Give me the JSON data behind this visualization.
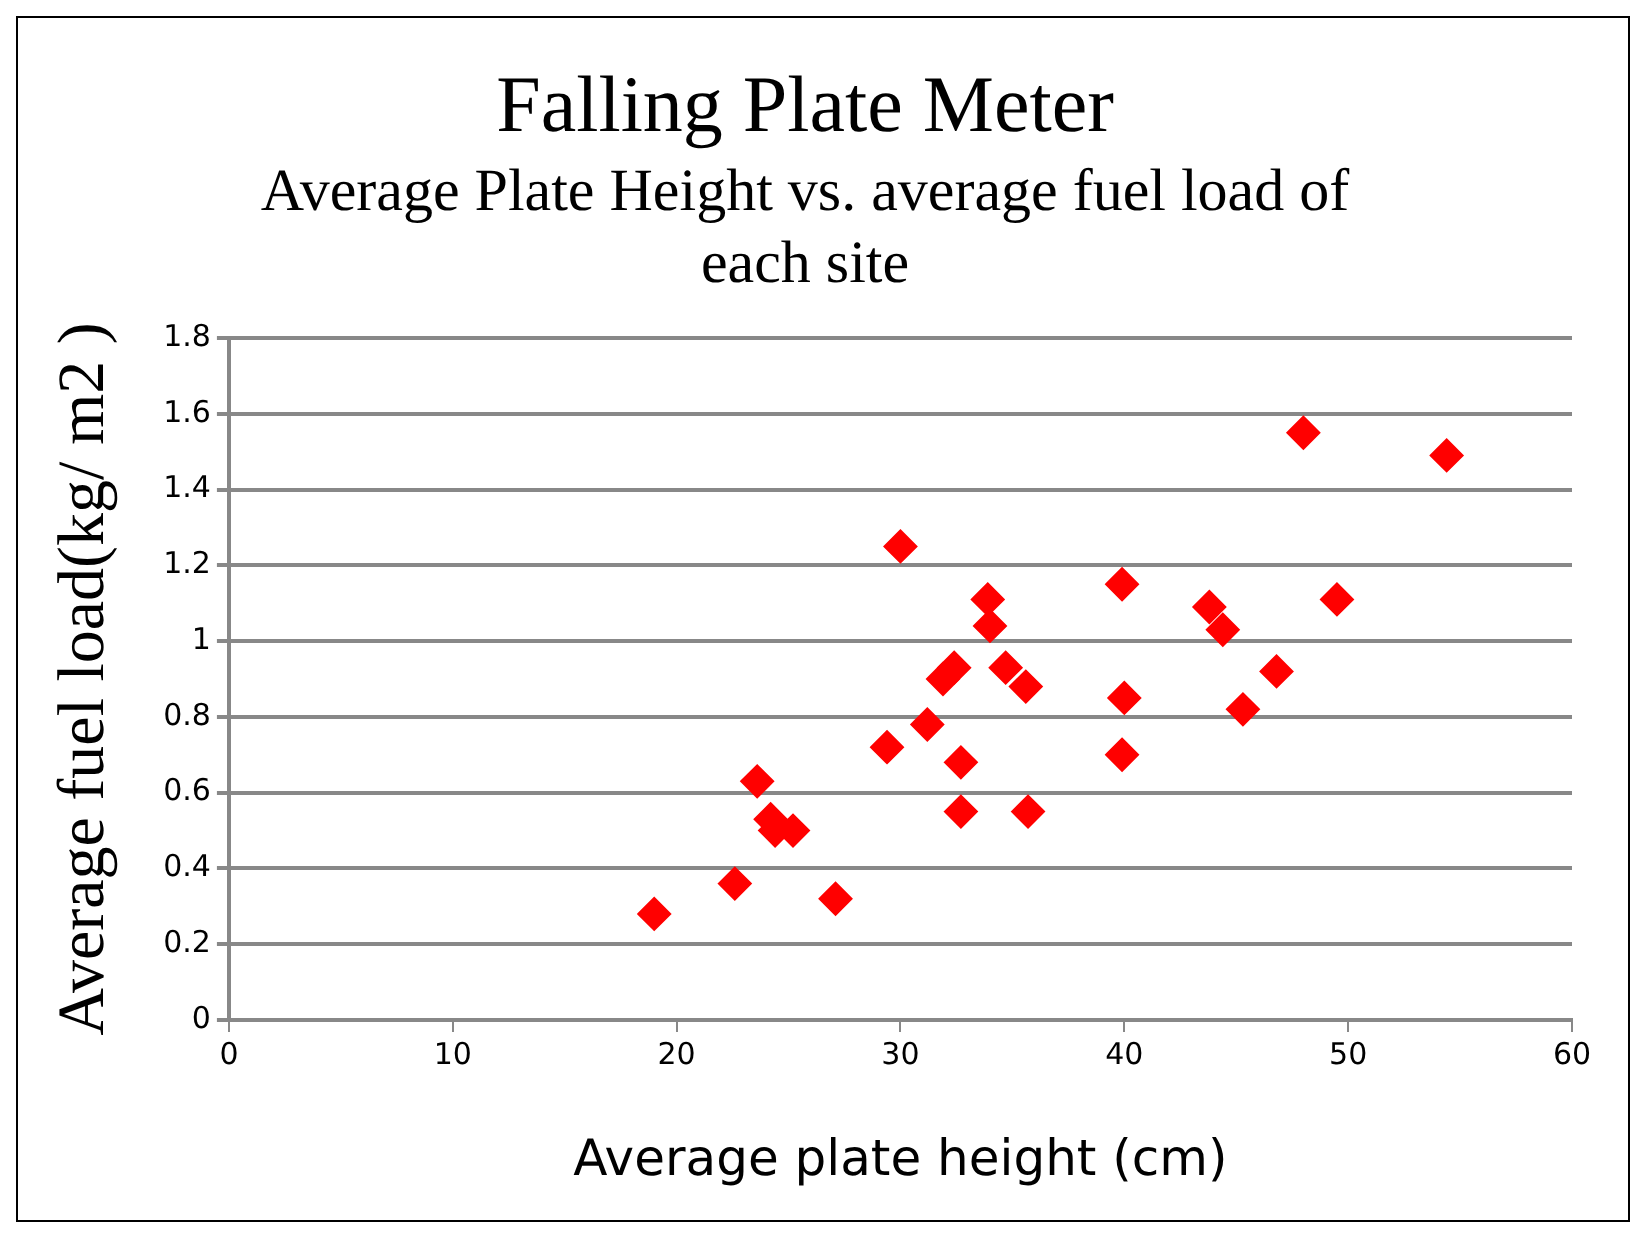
{
  "chart_data": {
    "type": "scatter",
    "title": "Falling Plate Meter",
    "subtitle": "Average Plate Height vs. average fuel load of each site",
    "xlabel": "Average plate height (cm)",
    "ylabel": "Average fuel load(kg/ m2 )",
    "marker": "diamond",
    "grid": "y",
    "legend": false,
    "xlim": [
      0,
      60
    ],
    "xticks": [
      0,
      10,
      20,
      30,
      40,
      50,
      60
    ],
    "ylim": [
      0,
      1.8
    ],
    "yticks": [
      0,
      0.2,
      0.4,
      0.6,
      0.8,
      1,
      1.2,
      1.4,
      1.6,
      1.8
    ],
    "series": [
      {
        "color": "#ff0000",
        "x": [
          19.0,
          22.6,
          23.6,
          24.2,
          24.4,
          25.2,
          27.1,
          29.4,
          30.0,
          31.2,
          31.9,
          32.4,
          32.7,
          32.7,
          33.9,
          34.0,
          34.7,
          35.6,
          35.7,
          39.9,
          40.0,
          39.9,
          43.8,
          44.4,
          45.3,
          46.8,
          48.0,
          49.5,
          54.4
        ],
        "values": [
          0.28,
          0.36,
          0.63,
          0.53,
          0.5,
          0.5,
          0.32,
          0.72,
          1.25,
          0.78,
          0.9,
          0.93,
          0.68,
          0.55,
          1.11,
          1.04,
          0.93,
          0.88,
          0.55,
          1.15,
          0.85,
          0.7,
          1.09,
          1.03,
          0.82,
          0.92,
          1.55,
          1.11,
          1.49
        ]
      }
    ]
  }
}
